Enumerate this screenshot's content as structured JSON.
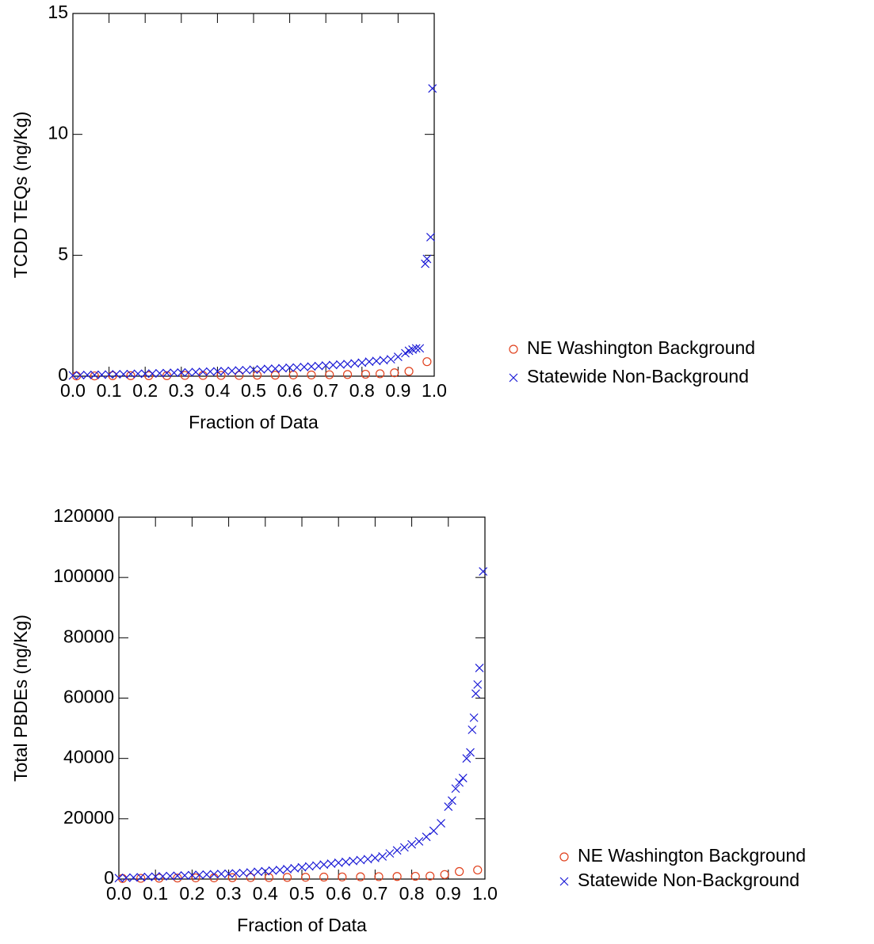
{
  "chart_data": [
    {
      "type": "scatter",
      "x_label": "Fraction of Data",
      "y_label": "TCDD TEQs (ng/Kg)",
      "xlim": [
        0,
        1
      ],
      "ylim": [
        0,
        15
      ],
      "xticks": [
        {
          "value": 0,
          "label": "0.0"
        },
        0.1,
        0.2,
        0.3,
        0.4,
        0.5,
        0.6,
        0.7,
        0.8,
        0.9,
        {
          "value": 1,
          "label": "1.0"
        }
      ],
      "yticks": [
        0,
        5,
        10,
        15
      ],
      "series": [
        {
          "name": "NE Washington Background",
          "color": "#e0401c",
          "marker": "circle",
          "x": [
            0.01,
            0.06,
            0.11,
            0.16,
            0.21,
            0.26,
            0.31,
            0.36,
            0.41,
            0.46,
            0.51,
            0.56,
            0.61,
            0.66,
            0.71,
            0.76,
            0.81,
            0.85,
            0.89,
            0.93,
            0.98
          ],
          "values": [
            0.01,
            0.01,
            0.02,
            0.02,
            0.02,
            0.02,
            0.03,
            0.03,
            0.03,
            0.03,
            0.04,
            0.04,
            0.05,
            0.05,
            0.06,
            0.07,
            0.08,
            0.1,
            0.14,
            0.2,
            0.6
          ]
        },
        {
          "name": "Statewide Non-Background",
          "color": "#1a1ad6",
          "marker": "cross",
          "x": [
            0,
            0.02,
            0.04,
            0.06,
            0.08,
            0.1,
            0.12,
            0.14,
            0.16,
            0.18,
            0.2,
            0.22,
            0.24,
            0.26,
            0.28,
            0.3,
            0.32,
            0.34,
            0.36,
            0.38,
            0.4,
            0.42,
            0.44,
            0.46,
            0.48,
            0.5,
            0.52,
            0.54,
            0.56,
            0.58,
            0.6,
            0.62,
            0.64,
            0.66,
            0.68,
            0.7,
            0.72,
            0.74,
            0.76,
            0.78,
            0.8,
            0.82,
            0.84,
            0.86,
            0.88,
            0.9,
            0.92,
            0.93,
            0.94,
            0.95,
            0.96,
            0.975,
            0.98,
            0.99,
            0.995
          ],
          "values": [
            0.03,
            0.04,
            0.05,
            0.05,
            0.06,
            0.07,
            0.08,
            0.08,
            0.09,
            0.1,
            0.1,
            0.11,
            0.12,
            0.13,
            0.14,
            0.15,
            0.16,
            0.17,
            0.18,
            0.19,
            0.2,
            0.21,
            0.22,
            0.24,
            0.25,
            0.27,
            0.28,
            0.3,
            0.31,
            0.33,
            0.35,
            0.36,
            0.38,
            0.4,
            0.42,
            0.44,
            0.46,
            0.48,
            0.5,
            0.53,
            0.56,
            0.6,
            0.63,
            0.66,
            0.7,
            0.8,
            0.95,
            1.05,
            1.1,
            1.15,
            1.15,
            4.65,
            4.85,
            5.75,
            11.9
          ]
        }
      ]
    },
    {
      "type": "scatter",
      "x_label": "Fraction of Data",
      "y_label": "Total PBDEs (ng/Kg)",
      "xlim": [
        0,
        1
      ],
      "ylim": [
        0,
        120000
      ],
      "xticks": [
        {
          "value": 0,
          "label": "0.0"
        },
        0.1,
        0.2,
        0.3,
        0.4,
        0.5,
        0.6,
        0.7,
        0.8,
        0.9,
        {
          "value": 1,
          "label": "1.0"
        }
      ],
      "yticks": [
        0,
        20000,
        40000,
        60000,
        80000,
        100000,
        120000
      ],
      "series": [
        {
          "name": "NE Washington Background",
          "color": "#e0401c",
          "marker": "circle",
          "x": [
            0.01,
            0.06,
            0.11,
            0.16,
            0.21,
            0.26,
            0.31,
            0.36,
            0.41,
            0.46,
            0.51,
            0.56,
            0.61,
            0.66,
            0.71,
            0.76,
            0.81,
            0.85,
            0.89,
            0.93,
            0.98
          ],
          "values": [
            200,
            250,
            300,
            350,
            400,
            400,
            450,
            500,
            500,
            550,
            600,
            650,
            700,
            750,
            800,
            850,
            900,
            1000,
            1500,
            2500,
            3000
          ]
        },
        {
          "name": "Statewide Non-Background",
          "color": "#1a1ad6",
          "marker": "cross",
          "x": [
            0,
            0.02,
            0.04,
            0.06,
            0.08,
            0.1,
            0.12,
            0.14,
            0.16,
            0.18,
            0.2,
            0.22,
            0.24,
            0.26,
            0.28,
            0.3,
            0.32,
            0.34,
            0.36,
            0.38,
            0.4,
            0.42,
            0.44,
            0.46,
            0.48,
            0.5,
            0.52,
            0.54,
            0.56,
            0.58,
            0.6,
            0.62,
            0.64,
            0.66,
            0.68,
            0.7,
            0.72,
            0.74,
            0.76,
            0.78,
            0.8,
            0.82,
            0.84,
            0.86,
            0.88,
            0.9,
            0.91,
            0.92,
            0.93,
            0.94,
            0.95,
            0.96,
            0.965,
            0.97,
            0.975,
            0.98,
            0.985,
            0.995
          ],
          "values": [
            300,
            400,
            500,
            600,
            700,
            800,
            900,
            1000,
            1100,
            1200,
            1300,
            1400,
            1500,
            1600,
            1700,
            1800,
            1900,
            2000,
            2200,
            2400,
            2600,
            2800,
            3000,
            3300,
            3600,
            3900,
            4200,
            4500,
            4800,
            5100,
            5400,
            5700,
            6000,
            6300,
            6600,
            7000,
            7500,
            8500,
            9500,
            10500,
            11500,
            12500,
            14000,
            16000,
            18500,
            24000,
            26000,
            30000,
            32000,
            33500,
            40000,
            42000,
            49500,
            53500,
            61500,
            64500,
            70000,
            102000
          ]
        }
      ]
    }
  ]
}
